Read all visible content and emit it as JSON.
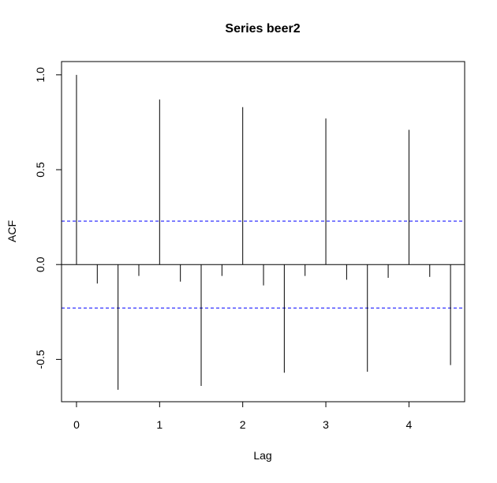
{
  "chart_data": {
    "type": "bar",
    "title": "Series  beer2",
    "xlabel": "Lag",
    "ylabel": "ACF",
    "xlim": [
      -0.18,
      4.67
    ],
    "ylim": [
      -0.723,
      1.07
    ],
    "x_ticks": [
      0,
      1,
      2,
      3,
      4
    ],
    "x_tick_labels": [
      "0",
      "1",
      "2",
      "3",
      "4"
    ],
    "y_ticks": [
      -0.5,
      0.0,
      0.5,
      1.0
    ],
    "y_tick_labels": [
      "-0.5",
      "0.0",
      "0.5",
      "1.0"
    ],
    "grid": false,
    "lags": [
      0,
      0.25,
      0.5,
      0.75,
      1.0,
      1.25,
      1.5,
      1.75,
      2.0,
      2.25,
      2.5,
      2.75,
      3.0,
      3.25,
      3.5,
      3.75,
      4.0,
      4.25,
      4.5
    ],
    "acf": [
      1.0,
      -0.1,
      -0.66,
      -0.06,
      0.87,
      -0.09,
      -0.64,
      -0.06,
      0.83,
      -0.11,
      -0.57,
      -0.06,
      0.77,
      -0.08,
      -0.565,
      -0.07,
      0.71,
      -0.065,
      -0.53
    ],
    "confidence_bounds": [
      0.229,
      -0.229
    ],
    "colors": {
      "bars": "#000000",
      "confidence": "#0000ff"
    }
  }
}
